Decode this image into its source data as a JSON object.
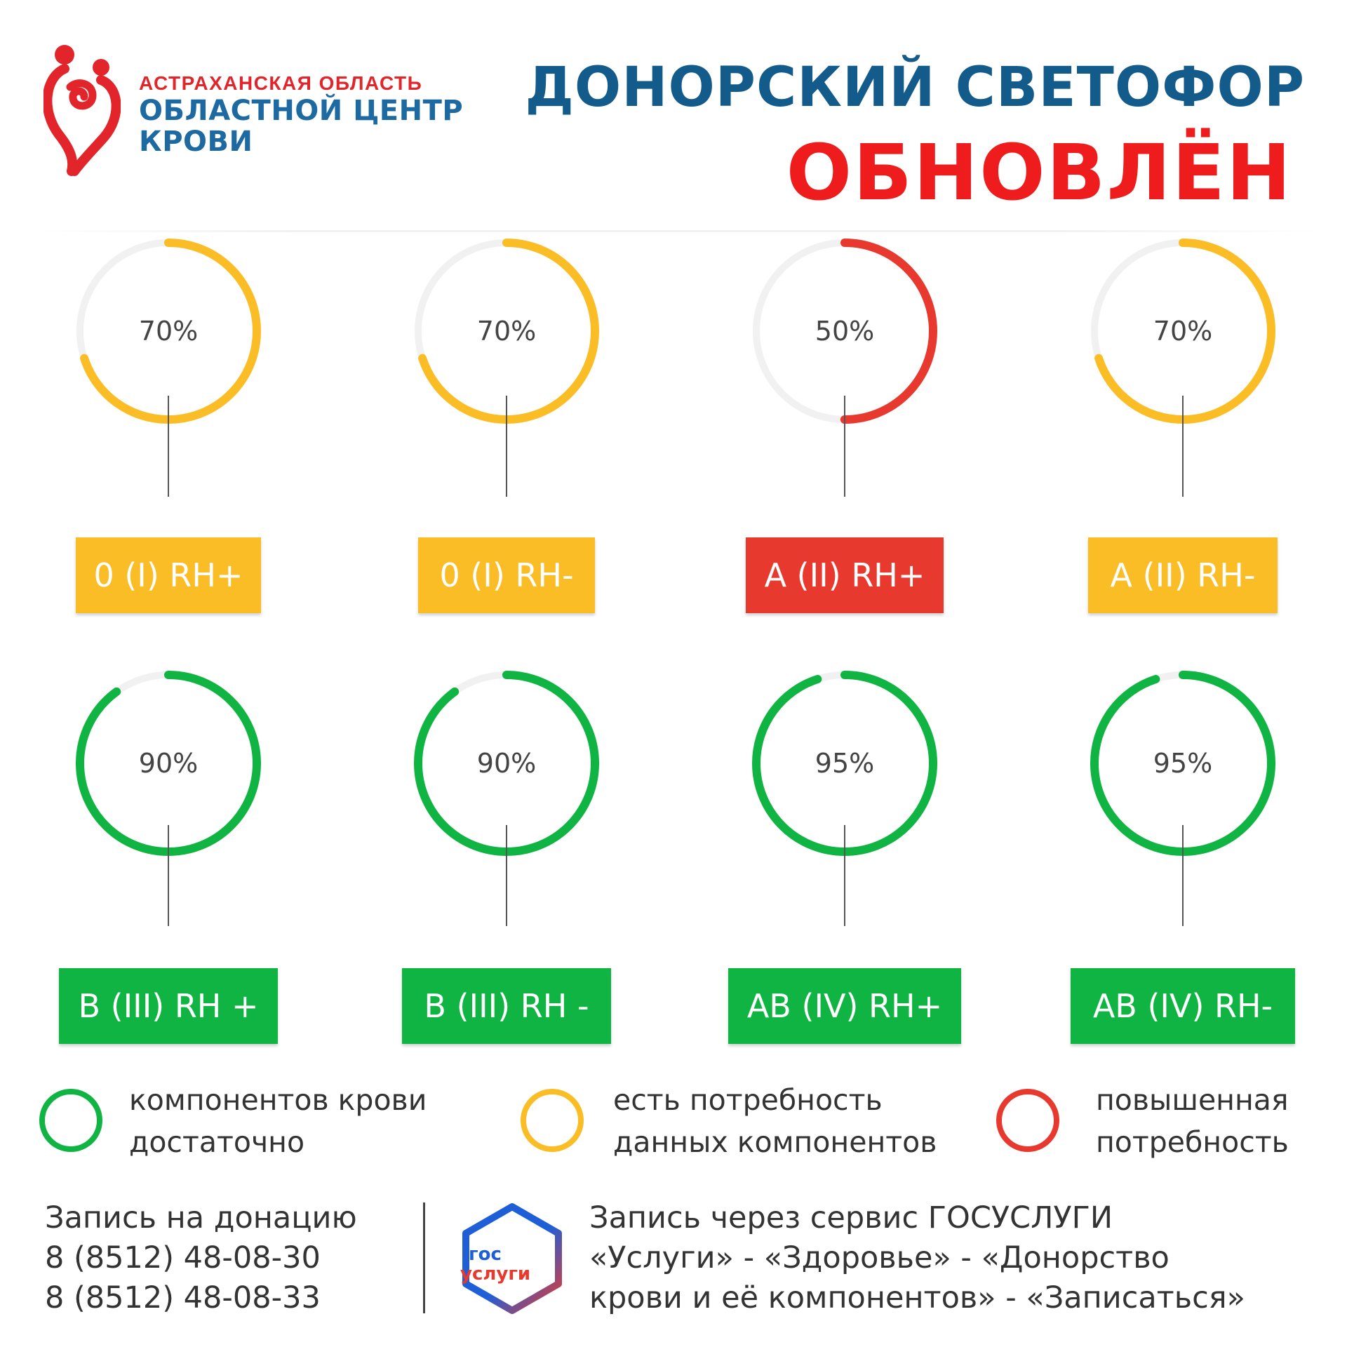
{
  "header": {
    "logo_region": "АСТРАХАНСКАЯ ОБЛАСТЬ",
    "logo_name_line1": "ОБЛАСТНОЙ ЦЕНТР",
    "logo_name_line2": "КРОВИ",
    "title_line1": "ДОНОРСКИЙ СВЕТОФОР",
    "title_line2": "ОБНОВЛЁН"
  },
  "colors": {
    "yellow": "#fbbd26",
    "red": "#e8392f",
    "green": "#10b443",
    "track": "#f1f1f1",
    "title_blue": "#135b8a",
    "title_red": "#ee1c1c"
  },
  "blood_groups": [
    {
      "label": "0 (I) RH+",
      "percent": 70,
      "percent_label": "70%",
      "status": "yellow"
    },
    {
      "label": "0 (I) RH-",
      "percent": 70,
      "percent_label": "70%",
      "status": "yellow"
    },
    {
      "label": "A (II) RH+",
      "percent": 50,
      "percent_label": "50%",
      "status": "red"
    },
    {
      "label": "A (II) RH-",
      "percent": 70,
      "percent_label": "70%",
      "status": "yellow"
    },
    {
      "label": "B (III) RH +",
      "percent": 90,
      "percent_label": "90%",
      "status": "green"
    },
    {
      "label": "B (III) RH -",
      "percent": 90,
      "percent_label": "90%",
      "status": "green"
    },
    {
      "label": "AB (IV) RH+",
      "percent": 95,
      "percent_label": "95%",
      "status": "green"
    },
    {
      "label": "AB (IV) RH-",
      "percent": 95,
      "percent_label": "95%",
      "status": "green"
    }
  ],
  "legend": [
    {
      "status": "green",
      "line1": "компонентов крови",
      "line2": "достаточно"
    },
    {
      "status": "yellow",
      "line1": "есть потребность",
      "line2": "данных компонентов"
    },
    {
      "status": "red",
      "line1": "повышенная",
      "line2": "потребность"
    }
  ],
  "footer": {
    "contact_title": "Запись на донацию",
    "phone1": "8 (8512) 48-08-30",
    "phone2": "8 (8512) 48-08-33",
    "gos_logo_line1": "гос",
    "gos_logo_line2": "услуги",
    "service_line1": "Запись через сервис ГОСУСЛУГИ",
    "service_line2": "«Услуги» - «Здоровье» - «Донорство",
    "service_line3": "крови и её компонентов» - «Записаться»"
  }
}
